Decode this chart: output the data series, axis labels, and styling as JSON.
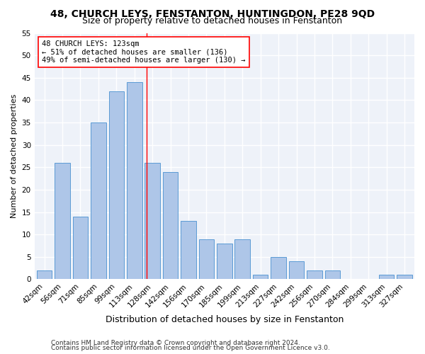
{
  "title": "48, CHURCH LEYS, FENSTANTON, HUNTINGDON, PE28 9QD",
  "subtitle": "Size of property relative to detached houses in Fenstanton",
  "xlabel": "Distribution of detached houses by size in Fenstanton",
  "ylabel": "Number of detached properties",
  "categories": [
    "42sqm",
    "56sqm",
    "71sqm",
    "85sqm",
    "99sqm",
    "113sqm",
    "128sqm",
    "142sqm",
    "156sqm",
    "170sqm",
    "185sqm",
    "199sqm",
    "213sqm",
    "227sqm",
    "242sqm",
    "256sqm",
    "270sqm",
    "284sqm",
    "299sqm",
    "313sqm",
    "327sqm"
  ],
  "values": [
    2,
    26,
    14,
    35,
    42,
    44,
    26,
    24,
    13,
    9,
    8,
    9,
    1,
    5,
    4,
    2,
    2,
    0,
    0,
    1,
    1
  ],
  "bar_color": "#aec6e8",
  "bar_edge_color": "#5b9bd5",
  "highlight_line_color": "red",
  "ylim": [
    0,
    55
  ],
  "yticks": [
    0,
    5,
    10,
    15,
    20,
    25,
    30,
    35,
    40,
    45,
    50,
    55
  ],
  "annotation_text": "48 CHURCH LEYS: 123sqm\n← 51% of detached houses are smaller (136)\n49% of semi-detached houses are larger (130) →",
  "annotation_box_color": "#ffffff",
  "annotation_box_edge": "red",
  "footer1": "Contains HM Land Registry data © Crown copyright and database right 2024.",
  "footer2": "Contains public sector information licensed under the Open Government Licence v3.0.",
  "bg_color": "#eef2f9",
  "grid_color": "#ffffff",
  "fig_bg_color": "#ffffff",
  "title_fontsize": 10,
  "subtitle_fontsize": 9,
  "xlabel_fontsize": 9,
  "ylabel_fontsize": 8,
  "tick_fontsize": 7.5,
  "footer_fontsize": 6.5,
  "annotation_fontsize": 7.5
}
